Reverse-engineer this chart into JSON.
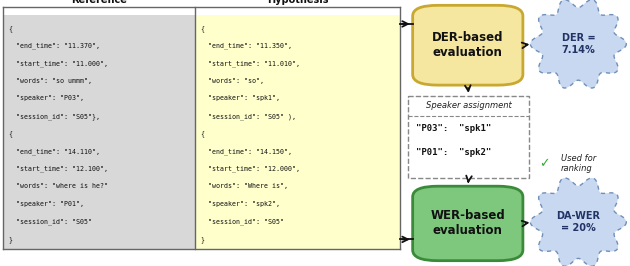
{
  "ref_text": [
    "{",
    "  \"end_time\": \"11.370\",",
    "  \"start_time\": \"11.000\",",
    "  \"words\": \"so ummm\",",
    "  \"speaker\": \"P03\",",
    "  \"session_id\": \"S05\"},",
    "{",
    "  \"end_time\": \"14.110\",",
    "  \"start_time\": \"12.100\",",
    "  \"words\": \"where is he?\"",
    "  \"speaker\": \"P01\",",
    "  \"session_id\": \"S05\"",
    "}"
  ],
  "hyp_text": [
    "{",
    "  \"end_time\": \"11.350\",",
    "  \"start_time\": \"11.010\",",
    "  \"words\": \"so\",",
    "  \"speaker\": \"spk1\",",
    "  \"session_id\": \"S05\" ),",
    "{",
    "  \"end_time\": \"14.150\",",
    "  \"start_time\": \"12.000\",",
    "  \"words\": \"Where is\",",
    "  \"speaker\": \"spk2\",",
    "  \"session_id\": \"S05\"",
    "}"
  ],
  "spk_assign_text": [
    "\"P03\":  \"spk1\"",
    "\"P01\":  \"spk2\""
  ],
  "ref_bg": "#d8d8d8",
  "hyp_bg": "#ffffcc",
  "der_box_bg": "#f5e6a0",
  "der_box_border": "#c8a830",
  "wer_box_bg": "#7ec87e",
  "wer_box_border": "#3a8a3a",
  "cloud_bg": "#c8d8f0",
  "cloud_border_dashed": "#7090b8",
  "arrow_color": "#111111",
  "checkmark_color": "#33aa33",
  "ref_label": "Reference",
  "hyp_label": "Hypothesis",
  "der_label": "DER-based\nevaluation",
  "wer_label": "WER-based\nevaluation",
  "der_result": "DER =\n7.14%",
  "wer_result": "DA-WER\n= 20%",
  "spk_title": "Speaker assignment",
  "used_for": "Used for\nranking"
}
